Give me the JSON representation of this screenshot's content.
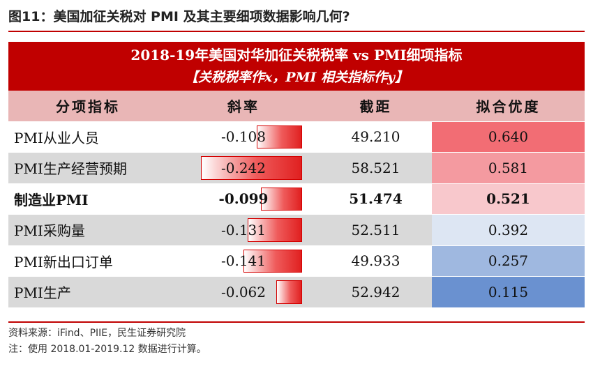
{
  "figure_title": "图11：美国加征关税对 PMI 及其主要细项数据影响几何?",
  "banner": {
    "line1": "2018-19年美国对华加征关税税率 vs PMI细项指标",
    "line2": "【关税税率作x，PMI 相关指标作y】"
  },
  "table": {
    "headers": [
      "分项指标",
      "斜率",
      "截距",
      "拟合优度"
    ],
    "rows": [
      {
        "name": "PMI从业人员",
        "slope": "-0.108",
        "intercept": "49.210",
        "r2": "0.640",
        "slope_value": -0.108,
        "r2_color": "#f26d74",
        "bold": false
      },
      {
        "name": "PMI生产经营预期",
        "slope": "-0.242",
        "intercept": "58.521",
        "r2": "0.581",
        "slope_value": -0.242,
        "r2_color": "#f49aa0",
        "bold": false
      },
      {
        "name": "制造业PMI",
        "slope": "-0.099",
        "intercept": "51.474",
        "r2": "0.521",
        "slope_value": -0.099,
        "r2_color": "#f8c8cc",
        "bold": true
      },
      {
        "name": "PMI采购量",
        "slope": "-0.131",
        "intercept": "52.511",
        "r2": "0.392",
        "slope_value": -0.131,
        "r2_color": "#dde6f3",
        "bold": false
      },
      {
        "name": "PMI新出口订单",
        "slope": "-0.141",
        "intercept": "49.933",
        "r2": "0.257",
        "slope_value": -0.141,
        "r2_color": "#9fb8e0",
        "bold": false
      },
      {
        "name": "PMI生产",
        "slope": "-0.062",
        "intercept": "52.942",
        "r2": "0.115",
        "slope_value": -0.062,
        "r2_color": "#6a91d0",
        "bold": false
      }
    ]
  },
  "source": "资料来源：iFind、PIIE，民生证券研究院",
  "note": "注：使用 2018.01-2019.12 数据进行计算。"
}
